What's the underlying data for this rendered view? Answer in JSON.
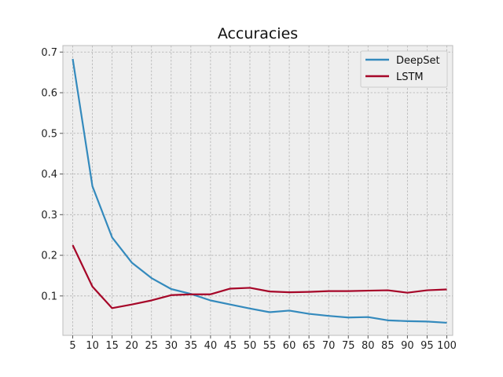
{
  "chart_data": {
    "type": "line",
    "title": "Accuracies",
    "xlabel": "",
    "ylabel": "",
    "x": [
      5,
      10,
      15,
      20,
      25,
      30,
      35,
      40,
      45,
      50,
      55,
      60,
      65,
      70,
      75,
      80,
      85,
      90,
      95,
      100
    ],
    "x_tick_labels": [
      "5",
      "10",
      "15",
      "20",
      "25",
      "30",
      "35",
      "40",
      "45",
      "50",
      "55",
      "60",
      "65",
      "70",
      "75",
      "80",
      "85",
      "90",
      "95",
      "100"
    ],
    "xlim": [
      2.5,
      101.5
    ],
    "y_ticks": [
      0.1,
      0.2,
      0.3,
      0.4,
      0.5,
      0.6,
      0.7
    ],
    "y_tick_labels": [
      "0.1",
      "0.2",
      "0.3",
      "0.4",
      "0.5",
      "0.6",
      "0.7"
    ],
    "ylim": [
      0.003,
      0.716
    ],
    "grid": true,
    "legend_position": "top-right",
    "series": [
      {
        "name": "DeepSet",
        "color": "#348abd",
        "values": [
          0.683,
          0.37,
          0.244,
          0.182,
          0.144,
          0.117,
          0.105,
          0.089,
          0.079,
          0.069,
          0.06,
          0.064,
          0.056,
          0.051,
          0.047,
          0.048,
          0.04,
          0.038,
          0.037,
          0.034
        ]
      },
      {
        "name": "LSTM",
        "color": "#a60628",
        "values": [
          0.225,
          0.123,
          0.07,
          0.079,
          0.089,
          0.102,
          0.104,
          0.104,
          0.118,
          0.12,
          0.111,
          0.109,
          0.11,
          0.112,
          0.112,
          0.113,
          0.114,
          0.108,
          0.114,
          0.116
        ]
      }
    ]
  }
}
